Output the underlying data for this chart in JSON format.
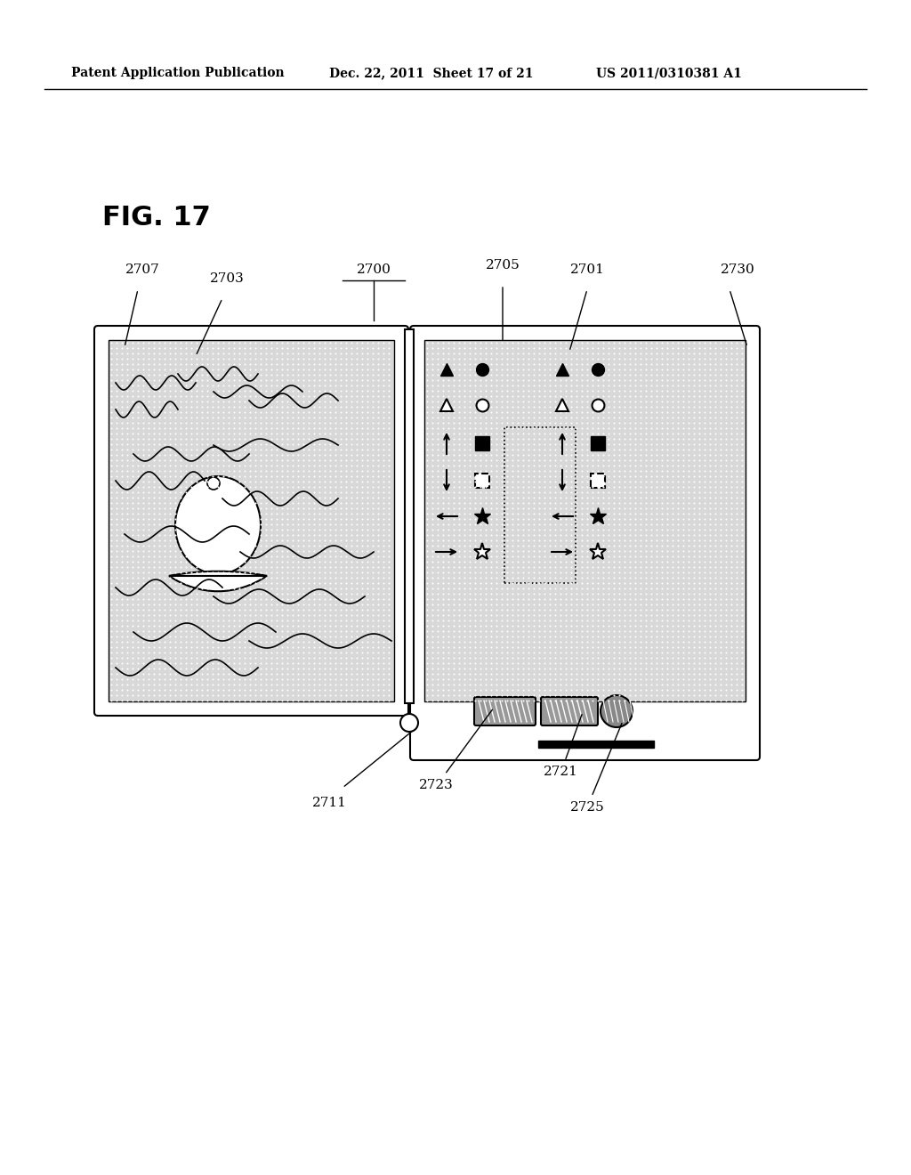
{
  "title": "FIG. 17",
  "header_left": "Patent Application Publication",
  "header_mid": "Dec. 22, 2011  Sheet 17 of 21",
  "header_right": "US 2011/0310381 A1",
  "bg_color": "#ffffff",
  "label_2700": "2700",
  "label_2707": "2707",
  "label_2703": "2703",
  "label_2705": "2705",
  "label_2701": "2701",
  "label_2730": "2730",
  "label_2711": "2711",
  "label_2723": "2723",
  "label_2721": "2721",
  "label_2725": "2725"
}
